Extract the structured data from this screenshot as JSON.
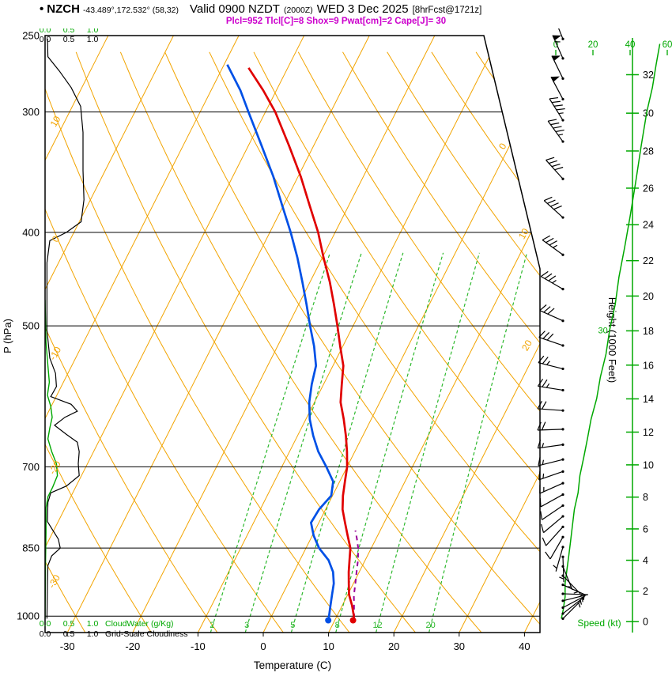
{
  "header": {
    "bullet": "•",
    "station": "NZCH",
    "coords": "-43.489°,172.532° (58,32)",
    "valid_main": "Valid 0900 NZDT",
    "valid_z": "(2000Z)",
    "valid_date": "WED 3 Dec 2025",
    "fcst": "[8hrFcst@1721z]",
    "params": "Plcl=952 Tlcl[C]=8 Shox=9 Pwat[cm]=2 Cape[J]= 30"
  },
  "colors": {
    "grid": "#f2a400",
    "moist_green": "#00a800",
    "mixing_green": "#2cb82c",
    "temperature": "#e00000",
    "dewpoint": "#0050e6",
    "parcel": "#990099",
    "black": "#000000",
    "magenta": "#cc00cc"
  },
  "chart_data": {
    "type": "line",
    "variant": "skew-t-log-p-sounding",
    "pressure_axis": {
      "label": "P (hPa)",
      "ticks": [
        250,
        300,
        400,
        500,
        700,
        850,
        1000
      ],
      "scale": "log",
      "range": [
        250,
        1040
      ]
    },
    "temp_axis": {
      "label": "Temperature (C)",
      "ticks": [
        -30,
        -20,
        -10,
        0,
        10,
        20,
        30,
        40
      ]
    },
    "height_axis": {
      "label": "Height (1000 Feet)",
      "ticks": [
        0,
        2,
        4,
        6,
        8,
        10,
        12,
        14,
        16,
        18,
        20,
        22,
        24,
        26,
        28,
        30,
        32
      ]
    },
    "speed_axis": {
      "label": "Speed (kt)",
      "ticks": [
        0,
        20,
        40,
        60
      ],
      "curve_label": "30"
    },
    "cloud_scales": {
      "tick_labels": [
        "0.0",
        "0.5",
        "1.0"
      ],
      "cloudwater_label": "CloudWater (g/Kg)",
      "cloudiness_label": "Grid-Scale Cloudiness"
    },
    "mixing_ratio_values": [
      2,
      3,
      5,
      8,
      12,
      20
    ],
    "dry_adiabat_labels": [
      10,
      0,
      -10,
      -20,
      -30
    ],
    "isotherm_labels": [
      0,
      10,
      20
    ],
    "temperature_profile": [
      [
        1010,
        12.8
      ],
      [
        1000,
        12.6
      ],
      [
        975,
        11.5
      ],
      [
        950,
        10.2
      ],
      [
        925,
        9.3
      ],
      [
        900,
        8.4
      ],
      [
        875,
        7.6
      ],
      [
        850,
        6.8
      ],
      [
        825,
        5.4
      ],
      [
        800,
        4.0
      ],
      [
        775,
        2.6
      ],
      [
        750,
        1.6
      ],
      [
        725,
        0.8
      ],
      [
        700,
        0.0
      ],
      [
        675,
        -1.2
      ],
      [
        650,
        -2.6
      ],
      [
        625,
        -4.2
      ],
      [
        600,
        -6.0
      ],
      [
        575,
        -7.2
      ],
      [
        550,
        -8.4
      ],
      [
        525,
        -10.4
      ],
      [
        500,
        -12.4
      ],
      [
        475,
        -14.6
      ],
      [
        450,
        -17.0
      ],
      [
        425,
        -19.8
      ],
      [
        400,
        -22.6
      ],
      [
        375,
        -26.0
      ],
      [
        350,
        -29.6
      ],
      [
        325,
        -33.8
      ],
      [
        300,
        -38.5
      ],
      [
        285,
        -42.0
      ],
      [
        270,
        -46.0
      ]
    ],
    "dewpoint_profile": [
      [
        1010,
        9.0
      ],
      [
        1000,
        8.8
      ],
      [
        975,
        8.2
      ],
      [
        950,
        7.6
      ],
      [
        925,
        7.0
      ],
      [
        900,
        6.0
      ],
      [
        875,
        4.4
      ],
      [
        850,
        2.0
      ],
      [
        825,
        0.2
      ],
      [
        800,
        -1.2
      ],
      [
        775,
        -1.0
      ],
      [
        750,
        -0.2
      ],
      [
        725,
        -1.0
      ],
      [
        700,
        -3.2
      ],
      [
        675,
        -5.6
      ],
      [
        650,
        -7.6
      ],
      [
        625,
        -9.4
      ],
      [
        600,
        -10.8
      ],
      [
        575,
        -11.8
      ],
      [
        550,
        -12.6
      ],
      [
        525,
        -14.4
      ],
      [
        500,
        -16.6
      ],
      [
        475,
        -18.8
      ],
      [
        450,
        -21.2
      ],
      [
        425,
        -23.8
      ],
      [
        400,
        -26.8
      ],
      [
        375,
        -30.2
      ],
      [
        350,
        -33.8
      ],
      [
        325,
        -38.0
      ],
      [
        300,
        -42.6
      ],
      [
        285,
        -45.5
      ],
      [
        268,
        -49.5
      ]
    ],
    "parcel_path": [
      [
        1005,
        12.8
      ],
      [
        975,
        11.8
      ],
      [
        952,
        11.0
      ],
      [
        925,
        10.3
      ],
      [
        900,
        9.6
      ],
      [
        875,
        8.9
      ],
      [
        850,
        8.0
      ],
      [
        830,
        7.0
      ],
      [
        815,
        6.2
      ]
    ],
    "cloudiness_profile": [
      [
        252,
        0.05
      ],
      [
        263,
        0.06
      ],
      [
        272,
        0.3
      ],
      [
        283,
        0.55
      ],
      [
        296,
        0.75
      ],
      [
        315,
        0.8
      ],
      [
        345,
        0.8
      ],
      [
        370,
        0.82
      ],
      [
        390,
        0.76
      ],
      [
        400,
        0.45
      ],
      [
        408,
        0.1
      ],
      [
        430,
        0.04
      ],
      [
        505,
        0.04
      ],
      [
        540,
        0.1
      ],
      [
        560,
        0.22
      ],
      [
        578,
        0.24
      ],
      [
        592,
        0.12
      ],
      [
        603,
        0.55
      ],
      [
        613,
        0.68
      ],
      [
        622,
        0.42
      ],
      [
        634,
        0.2
      ],
      [
        648,
        0.45
      ],
      [
        660,
        0.68
      ],
      [
        675,
        0.72
      ],
      [
        695,
        0.7
      ],
      [
        715,
        0.72
      ],
      [
        733,
        0.45
      ],
      [
        745,
        0.12
      ],
      [
        762,
        0.06
      ],
      [
        798,
        0.05
      ],
      [
        832,
        0.28
      ],
      [
        850,
        0.32
      ],
      [
        866,
        0.14
      ],
      [
        886,
        0.06
      ],
      [
        925,
        0.05
      ],
      [
        1006,
        0.04
      ]
    ],
    "cloudwater_profile": [
      [
        470,
        0.0
      ],
      [
        520,
        0.02
      ],
      [
        550,
        0.06
      ],
      [
        572,
        0.09
      ],
      [
        590,
        0.05
      ],
      [
        606,
        0.12
      ],
      [
        622,
        0.15
      ],
      [
        638,
        0.1
      ],
      [
        655,
        0.06
      ],
      [
        675,
        0.14
      ],
      [
        695,
        0.24
      ],
      [
        715,
        0.26
      ],
      [
        735,
        0.16
      ],
      [
        752,
        0.06
      ],
      [
        772,
        0.02
      ],
      [
        820,
        0.02
      ],
      [
        880,
        0.01
      ],
      [
        1006,
        0.0
      ]
    ],
    "wind_speed_profile": [
      [
        1006,
        3
      ],
      [
        985,
        4
      ],
      [
        955,
        5
      ],
      [
        925,
        5
      ],
      [
        895,
        6
      ],
      [
        865,
        7
      ],
      [
        835,
        8
      ],
      [
        805,
        9
      ],
      [
        775,
        10
      ],
      [
        745,
        12
      ],
      [
        715,
        13
      ],
      [
        685,
        15
      ],
      [
        655,
        17
      ],
      [
        625,
        19
      ],
      [
        595,
        22
      ],
      [
        565,
        24
      ],
      [
        535,
        27
      ],
      [
        505,
        29
      ],
      [
        475,
        32
      ],
      [
        445,
        34
      ],
      [
        415,
        37
      ],
      [
        385,
        40
      ],
      [
        355,
        43
      ],
      [
        325,
        46
      ],
      [
        300,
        49
      ],
      [
        283,
        52
      ],
      [
        268,
        54
      ],
      [
        255,
        56
      ]
    ],
    "wind_barbs": [
      [
        252,
        57,
        338
      ],
      [
        264,
        55,
        336
      ],
      [
        277,
        52,
        334
      ],
      [
        291,
        49,
        332
      ],
      [
        306,
        46,
        328
      ],
      [
        322,
        44,
        324
      ],
      [
        352,
        42,
        318
      ],
      [
        386,
        38,
        312
      ],
      [
        422,
        36,
        306
      ],
      [
        458,
        33,
        300
      ],
      [
        494,
        30,
        294
      ],
      [
        524,
        28,
        289
      ],
      [
        554,
        26,
        284
      ],
      [
        583,
        23,
        279
      ],
      [
        612,
        21,
        274
      ],
      [
        640,
        19,
        268
      ],
      [
        664,
        17,
        262
      ],
      [
        688,
        15,
        256
      ],
      [
        708,
        14,
        251
      ],
      [
        728,
        13,
        246
      ],
      [
        748,
        12,
        241
      ],
      [
        768,
        11,
        236
      ],
      [
        788,
        10,
        230
      ],
      [
        808,
        9,
        222
      ],
      [
        828,
        8,
        210
      ],
      [
        848,
        7,
        196
      ],
      [
        868,
        7,
        178
      ],
      [
        888,
        6,
        158
      ],
      [
        908,
        6,
        136
      ],
      [
        928,
        5,
        114
      ],
      [
        948,
        5,
        92
      ],
      [
        964,
        4,
        76
      ],
      [
        980,
        4,
        62
      ],
      [
        994,
        3,
        52
      ],
      [
        1006,
        3,
        45
      ]
    ]
  }
}
